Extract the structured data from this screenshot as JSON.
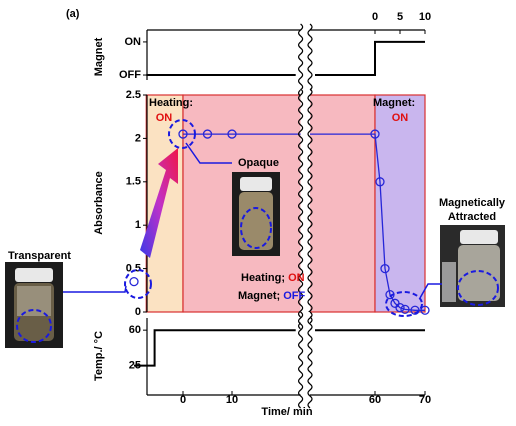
{
  "chart_data": {
    "type": "line",
    "panel_label": "(a)",
    "xlabel": "Time/ min",
    "xlim": [
      -7.5,
      70
    ],
    "xbreak": [
      24,
      47
    ],
    "xticks": [
      0,
      10,
      60,
      70
    ],
    "magnet": {
      "ylabel": "Magnet",
      "ylim": [
        -0.15,
        1.36
      ],
      "yticks": [
        {
          "value": 0,
          "label": "OFF"
        },
        {
          "value": 1,
          "label": "ON"
        }
      ],
      "x2ticks": [
        0,
        5,
        10
      ],
      "x": [
        -7.5,
        23,
        null,
        48,
        60,
        60,
        70
      ],
      "values": [
        0,
        0,
        null,
        0,
        0,
        1,
        1
      ],
      "color": "#000000"
    },
    "absorbance": {
      "ylabel": "Absorbance",
      "ylim": [
        0,
        2.5
      ],
      "yticks": [
        0,
        0.5,
        1,
        1.5,
        2,
        2.5
      ],
      "x": [
        -10,
        0,
        5,
        10,
        60,
        61,
        62,
        63,
        64,
        65,
        66,
        68,
        70
      ],
      "values": [
        0.35,
        2.05,
        2.05,
        2.05,
        2.05,
        1.5,
        0.5,
        0.2,
        0.1,
        0.05,
        0.03,
        0.02,
        0.02
      ],
      "color": "#2626d8",
      "regions": [
        {
          "from": -7.5,
          "to": 0,
          "color": "#fbe2c2"
        },
        {
          "from": 0,
          "to": 60,
          "color": "#f7b9c0"
        },
        {
          "from": 60,
          "to": 70,
          "color": "#c9b6ee"
        }
      ]
    },
    "temperature": {
      "ylabel": "Temp./ °C",
      "ylim": [
        -4,
        72
      ],
      "yticks": [
        25,
        60
      ],
      "x": [
        -10,
        -5.8,
        -5.8,
        23,
        null,
        48,
        70
      ],
      "values": [
        25,
        25,
        60,
        60,
        null,
        60,
        60
      ],
      "color": "#000000"
    },
    "annotations": {
      "heating_label": "Heating:",
      "heating_state": "ON",
      "magnet_label": "Magnet:",
      "magnet_state": "ON",
      "opaque": "Opaque",
      "transparent": "Transparent",
      "attracted_line1": "Magnetically",
      "attracted_line2": "Attracted",
      "mid_heating_label": "Heating; ",
      "mid_heating_state": "ON",
      "mid_magnet_label": "Magnet; ",
      "mid_magnet_state": "OFF"
    }
  }
}
